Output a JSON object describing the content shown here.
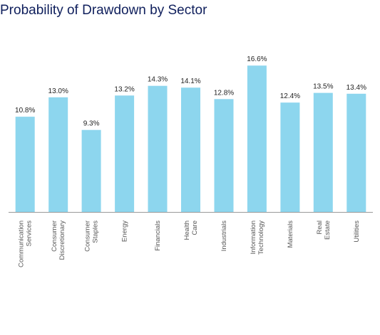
{
  "title": "Probability of Drawdown by Sector",
  "colors": {
    "bar": "#8dd6ee",
    "title": "#0f1f5c",
    "axis": "#999999",
    "text": "#222222"
  },
  "chart_data": {
    "type": "bar",
    "title": "Probability of Drawdown by Sector",
    "xlabel": "",
    "ylabel": "",
    "ylim": [
      0,
      18
    ],
    "grid": false,
    "legend": "none",
    "categories": [
      [
        "Communication",
        "Services"
      ],
      [
        "Consumer",
        "Discretionary"
      ],
      [
        "Consumer",
        "Staples"
      ],
      [
        "Energy"
      ],
      [
        "Financials"
      ],
      [
        "Health",
        "Care"
      ],
      [
        "Industrials"
      ],
      [
        "Information",
        "Technology"
      ],
      [
        "Materials"
      ],
      [
        "Real",
        "Estate"
      ],
      [
        "Utilities"
      ]
    ],
    "values": [
      10.8,
      13.0,
      9.3,
      13.2,
      14.3,
      14.1,
      12.8,
      16.6,
      12.4,
      13.5,
      13.4
    ],
    "value_labels": [
      "10.8%",
      "13.0%",
      "9.3%",
      "13.2%",
      "14.3%",
      "14.1%",
      "12.8%",
      "16.6%",
      "12.4%",
      "13.5%",
      "13.4%"
    ]
  }
}
